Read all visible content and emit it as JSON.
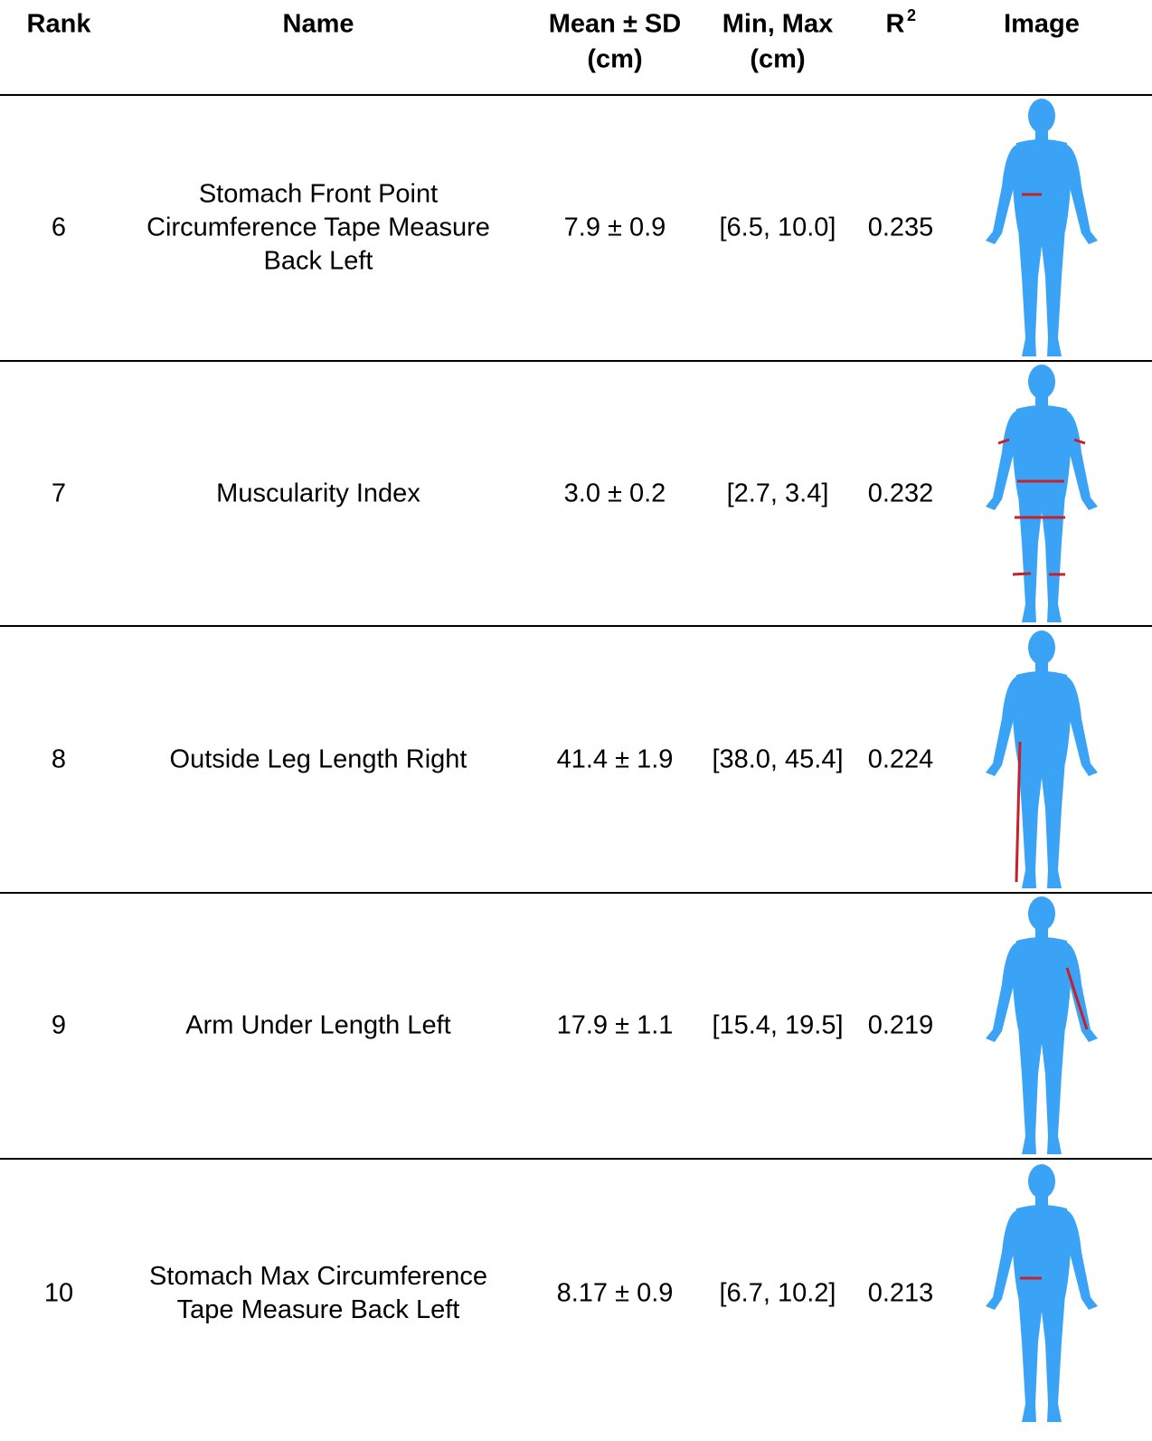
{
  "table": {
    "header": [
      {
        "lines": [
          "Rank"
        ]
      },
      {
        "lines": [
          "Name"
        ]
      },
      {
        "lines": [
          "Mean ± SD",
          "(cm)"
        ]
      },
      {
        "lines": [
          "Min, Max",
          "(cm)"
        ]
      },
      {
        "lines": [
          "R"
        ],
        "superscript": "2"
      },
      {
        "lines": [
          "Image"
        ]
      }
    ],
    "rows": [
      {
        "rank": "6",
        "name": [
          "Stomach Front Point",
          "Circumference Tape Measure",
          "Back Left"
        ],
        "mean_sd": "7.9 ± 0.9",
        "min_max": "[6.5, 10.0]",
        "r2": "0.235"
      },
      {
        "rank": "7",
        "name": [
          "Muscularity Index"
        ],
        "mean_sd": "3.0 ± 0.2",
        "min_max": "[2.7, 3.4]",
        "r2": "0.232"
      },
      {
        "rank": "8",
        "name": [
          "Outside Leg Length Right"
        ],
        "mean_sd": "41.4 ± 1.9",
        "min_max": "[38.0, 45.4]",
        "r2": "0.224"
      },
      {
        "rank": "9",
        "name": [
          "Arm Under Length Left"
        ],
        "mean_sd": "17.9 ± 1.1",
        "min_max": "[15.4, 19.5]",
        "r2": "0.219"
      },
      {
        "rank": "10",
        "name": [
          "Stomach Max Circumference",
          "Tape Measure Back Left"
        ],
        "mean_sd": "8.17 ± 0.9",
        "min_max": "[6.7, 10.2]",
        "r2": "0.213"
      }
    ]
  }
}
